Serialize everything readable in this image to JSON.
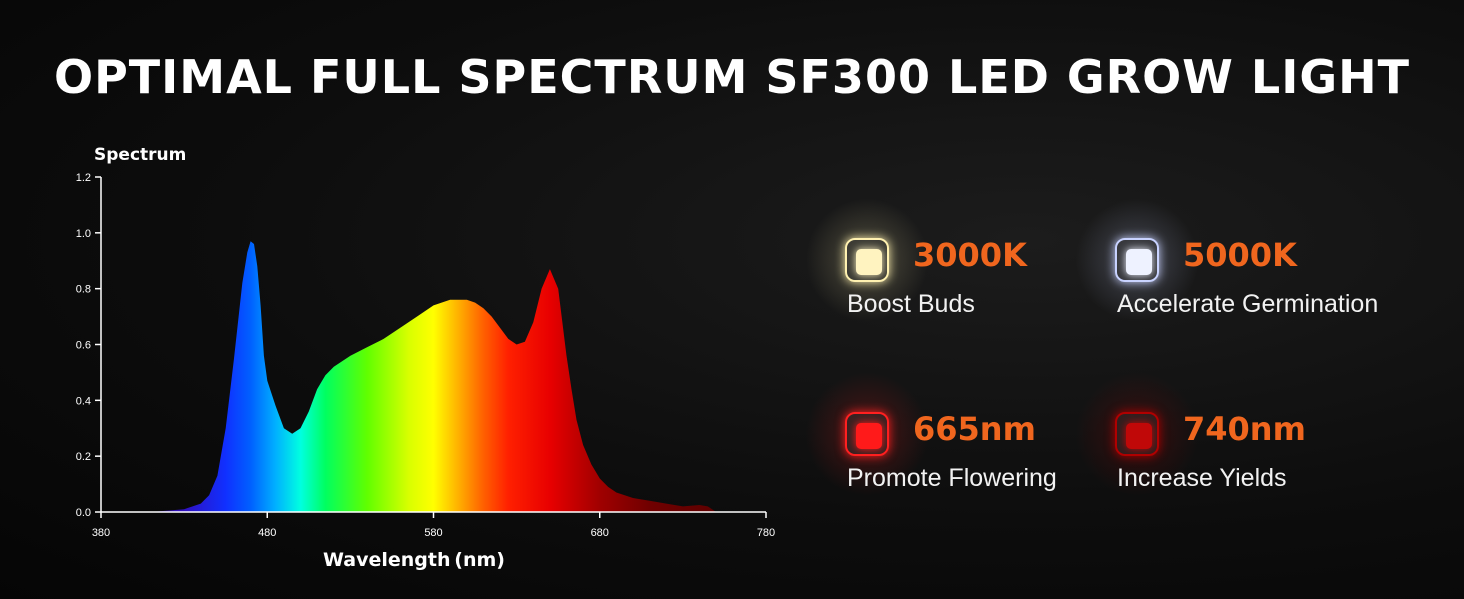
{
  "header": {
    "title": "OPTIMAL FULL SPECTRUM SF300 LED GROW LIGHT"
  },
  "chart_data": {
    "type": "area",
    "title": "Spectrum",
    "xlabel": "Wavelength (nm)",
    "ylabel": "",
    "xlim": [
      380,
      780
    ],
    "ylim": [
      0,
      1.2
    ],
    "x_ticks": [
      380,
      480,
      580,
      680,
      780
    ],
    "x_tick_labels": [
      "380",
      "480",
      "580",
      "680",
      "780"
    ],
    "y_ticks": [
      0,
      0.2,
      0.4,
      0.6,
      0.8,
      1.0,
      1.2
    ],
    "y_tick_labels": [
      "0.0",
      "0.2",
      "0.4",
      "0.6",
      "0.8",
      "1.0",
      "1.2"
    ],
    "grid": false,
    "fill": "wavelength-color gradient",
    "x": [
      400,
      410,
      420,
      430,
      440,
      445,
      450,
      455,
      460,
      465,
      468,
      470,
      472,
      474,
      476,
      478,
      480,
      485,
      490,
      495,
      500,
      505,
      510,
      515,
      520,
      525,
      530,
      540,
      550,
      560,
      570,
      580,
      590,
      600,
      605,
      610,
      615,
      620,
      625,
      630,
      635,
      640,
      645,
      650,
      655,
      660,
      663,
      666,
      670,
      675,
      680,
      685,
      690,
      700,
      710,
      720,
      730,
      740,
      745,
      750,
      760
    ],
    "values": [
      0.0,
      0.0,
      0.005,
      0.01,
      0.03,
      0.06,
      0.13,
      0.3,
      0.55,
      0.82,
      0.93,
      0.97,
      0.96,
      0.88,
      0.74,
      0.56,
      0.47,
      0.38,
      0.3,
      0.28,
      0.3,
      0.36,
      0.44,
      0.49,
      0.52,
      0.54,
      0.56,
      0.59,
      0.62,
      0.66,
      0.7,
      0.74,
      0.76,
      0.76,
      0.75,
      0.73,
      0.7,
      0.66,
      0.62,
      0.6,
      0.61,
      0.68,
      0.8,
      0.87,
      0.8,
      0.56,
      0.44,
      0.33,
      0.24,
      0.17,
      0.12,
      0.09,
      0.07,
      0.05,
      0.04,
      0.03,
      0.02,
      0.025,
      0.02,
      0.0,
      0.0
    ]
  },
  "specs": [
    {
      "value": "3000K",
      "description": "Boost Buds",
      "chip_color": "#fff3c0",
      "glow_color": "#fff1b0"
    },
    {
      "value": "5000K",
      "description": "Accelerate Germination",
      "chip_color": "#eef2ff",
      "glow_color": "#c8d2ff"
    },
    {
      "value": "665nm",
      "description": "Promote Flowering",
      "chip_color": "#ff1a1a",
      "glow_color": "#ff2020"
    },
    {
      "value": "740nm",
      "description": "Increase Yields",
      "chip_color": "#c00808",
      "glow_color": "#b00000"
    }
  ],
  "colors": {
    "accent": "#f0661e",
    "background": "#0a0a0a",
    "text": "#ffffff"
  }
}
